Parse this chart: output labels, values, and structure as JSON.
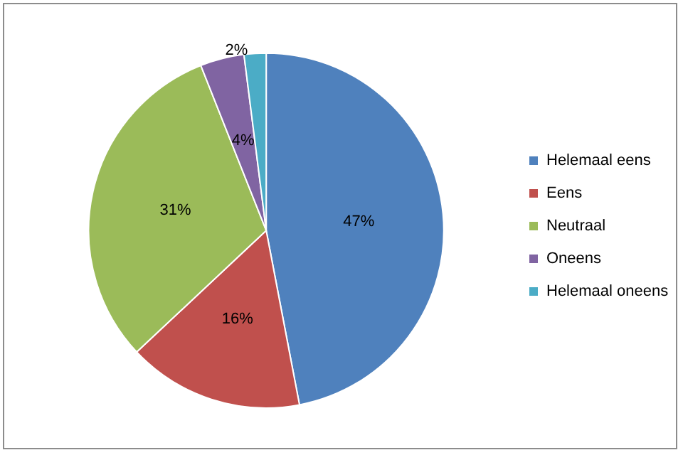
{
  "chart_data": {
    "type": "pie",
    "categories": [
      "Helemaal eens",
      "Eens",
      "Neutraal",
      "Oneens",
      "Helemaal oneens"
    ],
    "values": [
      47,
      16,
      31,
      4,
      2
    ],
    "colors": [
      "#4f81bd",
      "#c0504d",
      "#9bbb59",
      "#8064a2",
      "#4bacc6"
    ],
    "value_labels": [
      "47%",
      "16%",
      "31%",
      "4%",
      "2%"
    ],
    "legend": "right"
  }
}
